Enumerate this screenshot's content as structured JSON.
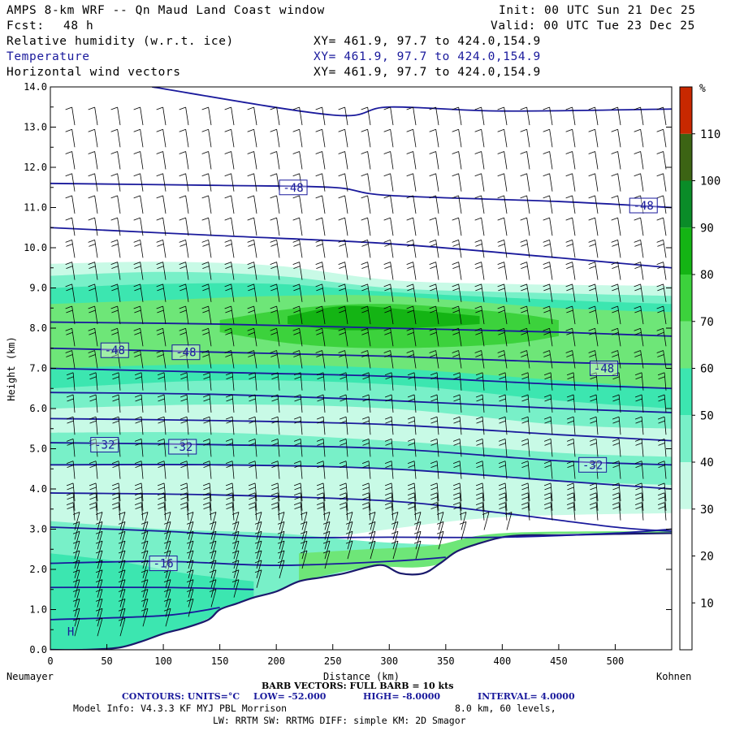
{
  "header": {
    "title": "AMPS 8-km WRF -- Qn Maud Land Coast window",
    "fcst_label": "Fcst:",
    "fcst_value": "48 h",
    "init": "Init: 00 UTC Sun 21 Dec 25",
    "valid": "Valid: 00 UTC Tue 23 Dec 25",
    "fields": [
      {
        "name": "Relative humidity (w.r.t. ice)",
        "xy": "XY= 461.9, 97.7 to 424.0,154.9",
        "color": "#000000"
      },
      {
        "name": "Temperature",
        "xy": "XY= 461.9, 97.7 to 424.0,154.9",
        "color": "#1a1a9c"
      },
      {
        "name": "Horizontal wind vectors",
        "xy": "XY= 461.9, 97.7 to 424.0,154.9",
        "color": "#000000"
      }
    ]
  },
  "chart_data": {
    "type": "heatmap",
    "description_fields": [
      "relative humidity shading",
      "temperature contours",
      "wind barbs"
    ],
    "xlabel": "Distance (km)",
    "ylabel": "Height (km)",
    "xlim": [
      0,
      550
    ],
    "ylim": [
      0,
      14
    ],
    "x_ticks": [
      0,
      50,
      100,
      150,
      200,
      250,
      300,
      350,
      400,
      450,
      500
    ],
    "y_ticks": [
      "0.0",
      "1.0",
      "2.0",
      "3.0",
      "4.0",
      "5.0",
      "6.0",
      "7.0",
      "8.0",
      "9.0",
      "10.0",
      "11.0",
      "12.0",
      "13.0",
      "14.0"
    ],
    "left_endpoint": "Neumayer",
    "right_endpoint": "Kohnen",
    "colorbar": {
      "unit": "%",
      "labels": [
        "10",
        "20",
        "30",
        "40",
        "50",
        "60",
        "70",
        "80",
        "90",
        "100",
        "110"
      ],
      "bins": [
        {
          "level": 0,
          "color": "#ffffff"
        },
        {
          "level": 30,
          "color": "#c8fae6"
        },
        {
          "level": 40,
          "color": "#78f0c8"
        },
        {
          "level": 50,
          "color": "#3ce6b0"
        },
        {
          "level": 60,
          "color": "#6ee678"
        },
        {
          "level": 70,
          "color": "#3cd23c"
        },
        {
          "level": 80,
          "color": "#14b414"
        },
        {
          "level": 90,
          "color": "#0a8c28"
        },
        {
          "level": 100,
          "color": "#3c6414"
        },
        {
          "level": 110,
          "color": "#c82800"
        }
      ]
    },
    "terrain": [
      [
        0,
        0.0
      ],
      [
        30,
        0.0
      ],
      [
        60,
        0.05
      ],
      [
        80,
        0.2
      ],
      [
        100,
        0.4
      ],
      [
        120,
        0.55
      ],
      [
        140,
        0.75
      ],
      [
        150,
        1.0
      ],
      [
        165,
        1.15
      ],
      [
        180,
        1.3
      ],
      [
        200,
        1.45
      ],
      [
        220,
        1.7
      ],
      [
        240,
        1.8
      ],
      [
        260,
        1.9
      ],
      [
        280,
        2.05
      ],
      [
        295,
        2.1
      ],
      [
        310,
        1.9
      ],
      [
        330,
        1.9
      ],
      [
        345,
        2.15
      ],
      [
        360,
        2.45
      ],
      [
        380,
        2.65
      ],
      [
        400,
        2.8
      ],
      [
        420,
        2.85
      ],
      [
        450,
        2.85
      ],
      [
        500,
        2.88
      ],
      [
        550,
        2.9
      ]
    ],
    "rh_regions": [
      {
        "rh": 35,
        "top": [
          [
            0,
            9.6
          ],
          [
            100,
            9.65
          ],
          [
            200,
            9.55
          ],
          [
            300,
            9.2
          ],
          [
            400,
            9.1
          ],
          [
            550,
            9.05
          ]
        ],
        "bottom": [
          [
            0,
            2.2
          ],
          [
            100,
            2.3
          ],
          [
            200,
            2.6
          ],
          [
            300,
            3.0
          ],
          [
            400,
            3.3
          ],
          [
            550,
            3.4
          ]
        ]
      },
      {
        "rh": 45,
        "top": [
          [
            0,
            9.3
          ],
          [
            100,
            9.4
          ],
          [
            200,
            9.3
          ],
          [
            300,
            9.0
          ],
          [
            400,
            8.9
          ],
          [
            550,
            8.8
          ]
        ],
        "bottom": [
          [
            0,
            6.0
          ],
          [
            150,
            6.1
          ],
          [
            300,
            6.0
          ],
          [
            450,
            5.6
          ],
          [
            550,
            5.5
          ]
        ]
      },
      {
        "rh": 55,
        "top": [
          [
            0,
            9.0
          ],
          [
            100,
            9.1
          ],
          [
            200,
            9.1
          ],
          [
            300,
            8.9
          ],
          [
            450,
            8.7
          ],
          [
            550,
            8.6
          ]
        ],
        "bottom": [
          [
            0,
            6.5
          ],
          [
            150,
            6.7
          ],
          [
            300,
            6.6
          ],
          [
            450,
            6.2
          ],
          [
            550,
            6.0
          ]
        ]
      },
      {
        "rh": 65,
        "top": [
          [
            0,
            8.6
          ],
          [
            100,
            8.7
          ],
          [
            200,
            8.8
          ],
          [
            300,
            8.8
          ],
          [
            450,
            8.5
          ],
          [
            550,
            8.4
          ]
        ],
        "bottom": [
          [
            0,
            7.0
          ],
          [
            150,
            7.1
          ],
          [
            300,
            7.0
          ],
          [
            450,
            6.7
          ],
          [
            550,
            6.5
          ]
        ]
      },
      {
        "rh": 75,
        "top": [
          [
            150,
            8.2
          ],
          [
            220,
            8.5
          ],
          [
            300,
            8.6
          ],
          [
            400,
            8.4
          ],
          [
            450,
            8.2
          ]
        ],
        "bottom": [
          [
            150,
            7.9
          ],
          [
            220,
            7.6
          ],
          [
            300,
            7.5
          ],
          [
            400,
            7.6
          ],
          [
            450,
            7.8
          ]
        ]
      },
      {
        "rh": 85,
        "top": [
          [
            210,
            8.3
          ],
          [
            260,
            8.55
          ],
          [
            320,
            8.45
          ],
          [
            380,
            8.3
          ]
        ],
        "bottom": [
          [
            210,
            8.1
          ],
          [
            260,
            7.95
          ],
          [
            320,
            8.0
          ],
          [
            380,
            8.1
          ]
        ]
      },
      {
        "rh": 45,
        "top": [
          [
            0,
            3.2
          ],
          [
            100,
            3.0
          ],
          [
            200,
            2.9
          ],
          [
            280,
            2.7
          ],
          [
            350,
            2.6
          ]
        ],
        "bottom": [
          [
            0,
            0.0
          ],
          [
            100,
            0.4
          ],
          [
            200,
            1.45
          ],
          [
            280,
            2.05
          ],
          [
            350,
            2.15
          ]
        ]
      },
      {
        "rh": 55,
        "top": [
          [
            0,
            2.4
          ],
          [
            60,
            2.2
          ],
          [
            120,
            1.9
          ],
          [
            180,
            1.7
          ]
        ],
        "bottom": [
          [
            0,
            0.0
          ],
          [
            60,
            0.05
          ],
          [
            120,
            0.55
          ],
          [
            180,
            1.3
          ]
        ]
      },
      {
        "rh": 65,
        "top": [
          [
            220,
            2.4
          ],
          [
            280,
            2.5
          ],
          [
            340,
            2.6
          ],
          [
            400,
            2.9
          ],
          [
            550,
            2.95
          ]
        ],
        "bottom": [
          [
            220,
            1.7
          ],
          [
            280,
            2.05
          ],
          [
            340,
            2.1
          ],
          [
            400,
            2.8
          ],
          [
            550,
            2.9
          ]
        ]
      },
      {
        "rh": 45,
        "top": [
          [
            0,
            5.4
          ],
          [
            150,
            5.4
          ],
          [
            300,
            5.2
          ],
          [
            450,
            4.9
          ],
          [
            550,
            4.8
          ]
        ],
        "bottom": [
          [
            0,
            4.6
          ],
          [
            150,
            4.6
          ],
          [
            300,
            4.5
          ],
          [
            450,
            4.2
          ],
          [
            550,
            4.1
          ]
        ]
      }
    ],
    "temperature_contours": [
      [
        [
          0,
          0.75
        ],
        [
          100,
          0.85
        ],
        [
          150,
          1.05
        ]
      ],
      [
        [
          0,
          1.55
        ],
        [
          100,
          1.55
        ],
        [
          180,
          1.5
        ]
      ],
      [
        [
          0,
          2.15
        ],
        [
          100,
          2.2
        ],
        [
          200,
          2.1
        ],
        [
          300,
          2.2
        ],
        [
          350,
          2.3
        ]
      ],
      [
        [
          0,
          3.05
        ],
        [
          100,
          2.95
        ],
        [
          200,
          2.8
        ],
        [
          300,
          2.8
        ],
        [
          400,
          2.8
        ],
        [
          500,
          2.9
        ],
        [
          550,
          3.0
        ]
      ],
      [
        [
          0,
          3.9
        ],
        [
          150,
          3.85
        ],
        [
          300,
          3.7
        ],
        [
          400,
          3.4
        ],
        [
          500,
          3.05
        ],
        [
          550,
          2.95
        ]
      ],
      [
        [
          0,
          4.6
        ],
        [
          150,
          4.6
        ],
        [
          300,
          4.5
        ],
        [
          450,
          4.2
        ],
        [
          550,
          4.0
        ]
      ],
      [
        [
          0,
          5.15
        ],
        [
          150,
          5.1
        ],
        [
          300,
          5.0
        ],
        [
          450,
          4.7
        ],
        [
          550,
          4.6
        ]
      ],
      [
        [
          0,
          5.75
        ],
        [
          150,
          5.7
        ],
        [
          300,
          5.6
        ],
        [
          450,
          5.35
        ],
        [
          550,
          5.2
        ]
      ],
      [
        [
          0,
          6.4
        ],
        [
          150,
          6.35
        ],
        [
          300,
          6.2
        ],
        [
          450,
          6.0
        ],
        [
          550,
          5.9
        ]
      ],
      [
        [
          0,
          7.0
        ],
        [
          150,
          6.9
        ],
        [
          300,
          6.8
        ],
        [
          450,
          6.6
        ],
        [
          550,
          6.5
        ]
      ],
      [
        [
          0,
          7.5
        ],
        [
          150,
          7.4
        ],
        [
          300,
          7.3
        ],
        [
          450,
          7.15
        ],
        [
          550,
          7.1
        ]
      ],
      [
        [
          0,
          8.15
        ],
        [
          150,
          8.1
        ],
        [
          300,
          8.0
        ],
        [
          450,
          7.9
        ],
        [
          550,
          7.8
        ]
      ],
      [
        [
          0,
          10.5
        ],
        [
          150,
          10.3
        ],
        [
          300,
          10.1
        ],
        [
          450,
          9.75
        ],
        [
          550,
          9.5
        ]
      ],
      [
        [
          0,
          11.6
        ],
        [
          150,
          11.55
        ],
        [
          250,
          11.5
        ],
        [
          300,
          11.3
        ],
        [
          450,
          11.15
        ],
        [
          550,
          11.0
        ]
      ],
      [
        [
          90,
          14.0
        ],
        [
          250,
          13.3
        ],
        [
          300,
          13.5
        ],
        [
          400,
          13.4
        ],
        [
          550,
          13.45
        ]
      ]
    ],
    "contour_labels": [
      {
        "text": "-48",
        "x": 215,
        "y": 11.5
      },
      {
        "text": "-48",
        "x": 525,
        "y": 11.05
      },
      {
        "text": "-48",
        "x": 57,
        "y": 7.45
      },
      {
        "text": "-48",
        "x": 120,
        "y": 7.4
      },
      {
        "text": "-48",
        "x": 490,
        "y": 7.0
      },
      {
        "text": "-32",
        "x": 48,
        "y": 5.1
      },
      {
        "text": "-32",
        "x": 117,
        "y": 5.05
      },
      {
        "text": "-32",
        "x": 480,
        "y": 4.6
      },
      {
        "text": "-16",
        "x": 100,
        "y": 2.15
      },
      {
        "text": "H",
        "x": 18,
        "y": 0.45
      }
    ],
    "contour_info": {
      "units_label": "CONTOURS: UNITS=°C",
      "low": "LOW= -52.000",
      "high": "HIGH= -8.0000",
      "interval": "INTERVAL= 4.0000"
    },
    "barb_info": "BARB VECTORS: FULL BARB = 10 kts"
  },
  "footer": {
    "model_info": "Model Info: V4.3.3 KF MYJ PBL Morrison",
    "resolution": "8.0 km, 60 levels,",
    "physics": "LW: RRTM SW: RRTMG DIFF: simple KM: 2D Smagor"
  },
  "colors": {
    "contour": "#1a1a9c",
    "axis": "#000000"
  }
}
